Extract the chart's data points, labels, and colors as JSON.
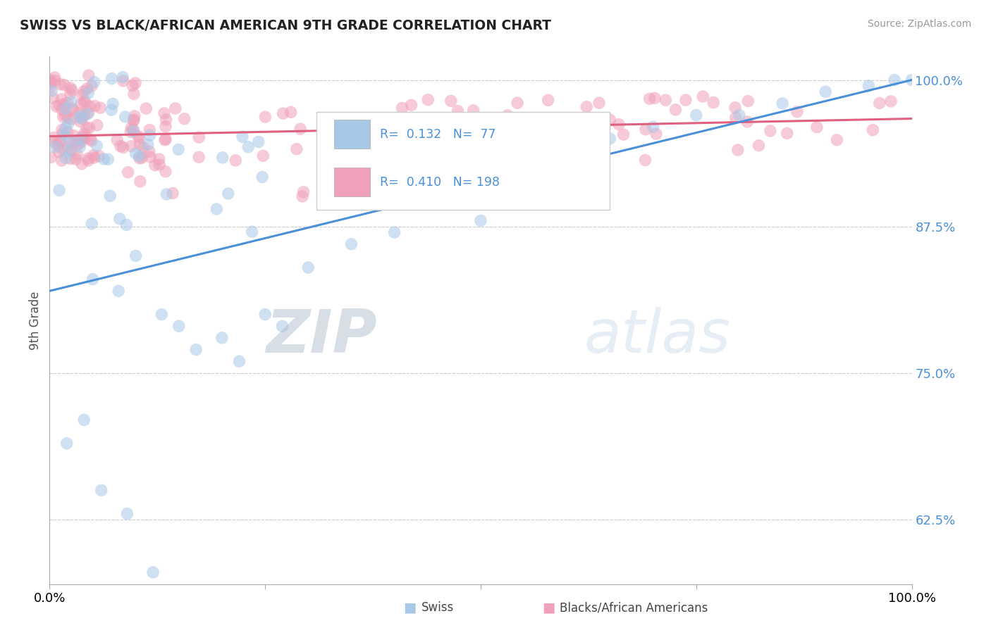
{
  "title": "SWISS VS BLACK/AFRICAN AMERICAN 9TH GRADE CORRELATION CHART",
  "source": "Source: ZipAtlas.com",
  "ylabel": "9th Grade",
  "xlim": [
    0.0,
    1.0
  ],
  "ylim": [
    0.57,
    1.02
  ],
  "swiss_color": "#a8c8e8",
  "pink_color": "#f0a0b8",
  "trend_blue": "#4a90d9",
  "trend_pink": "#e06080",
  "swiss_R": 0.132,
  "swiss_N": 77,
  "pink_R": 0.41,
  "pink_N": 198,
  "blue_trend_y0": 0.82,
  "blue_trend_y1": 1.0,
  "pink_trend_y0": 0.952,
  "pink_trend_y1": 0.967,
  "yticks": [
    0.625,
    0.75,
    0.875,
    1.0
  ],
  "ytick_labels": [
    "62.5%",
    "75.0%",
    "87.5%",
    "100.0%"
  ],
  "watermark_zip": "ZIP",
  "watermark_atlas": "atlas",
  "legend_swiss": "Swiss",
  "legend_pink": "Blacks/African Americans"
}
